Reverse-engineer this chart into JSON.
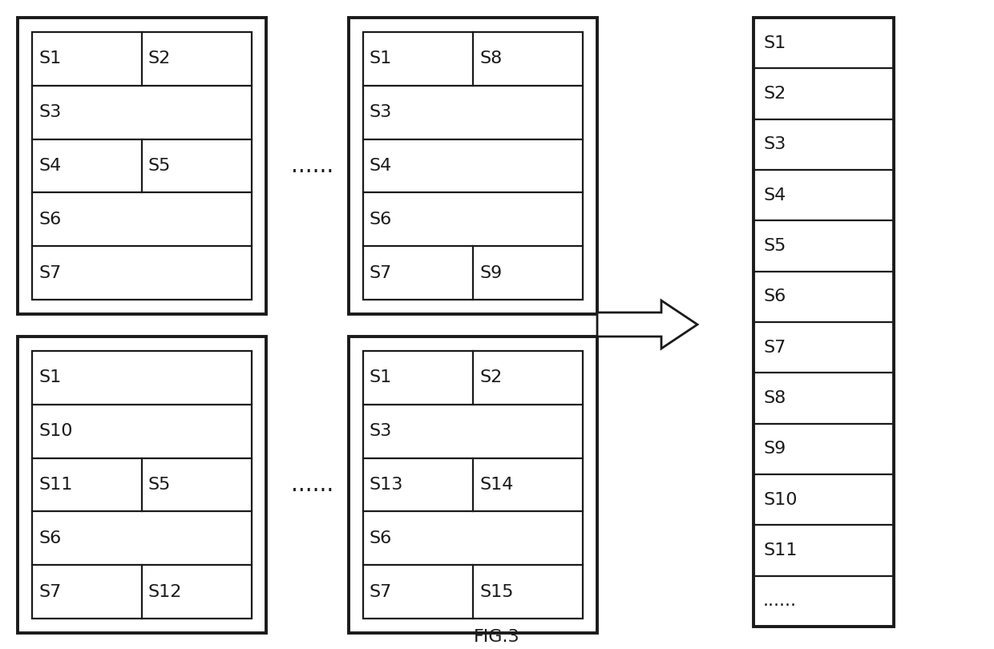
{
  "bg_color": "#ffffff",
  "border_color": "#1a1a1a",
  "text_color": "#1a1a1a",
  "fig_label": "FIG.3",
  "box1_top": {
    "rows": [
      [
        "S1",
        "S2"
      ],
      [
        "S3",
        ""
      ],
      [
        "S4",
        "S5"
      ],
      [
        "S6",
        ""
      ],
      [
        "S7",
        ""
      ]
    ]
  },
  "box1_bottom": {
    "rows": [
      [
        "S1",
        ""
      ],
      [
        "S10",
        ""
      ],
      [
        "S11",
        "S5"
      ],
      [
        "S6",
        ""
      ],
      [
        "S7",
        "S12"
      ]
    ]
  },
  "box2_top": {
    "rows": [
      [
        "S1",
        "S8"
      ],
      [
        "S3",
        ""
      ],
      [
        "S4",
        ""
      ],
      [
        "S6",
        ""
      ],
      [
        "S7",
        "S9"
      ]
    ]
  },
  "box2_bottom": {
    "rows": [
      [
        "S1",
        "S2"
      ],
      [
        "S3",
        ""
      ],
      [
        "S13",
        "S14"
      ],
      [
        "S6",
        ""
      ],
      [
        "S7",
        "S15"
      ]
    ]
  },
  "box3_items": [
    "S1",
    "S2",
    "S3",
    "S4",
    "S5",
    "S6",
    "S7",
    "S8",
    "S9",
    "S10",
    "S11",
    "......"
  ],
  "outer_lw": 2.8,
  "inner_lw": 1.6,
  "font_size": 16,
  "dots_font_size": 20
}
